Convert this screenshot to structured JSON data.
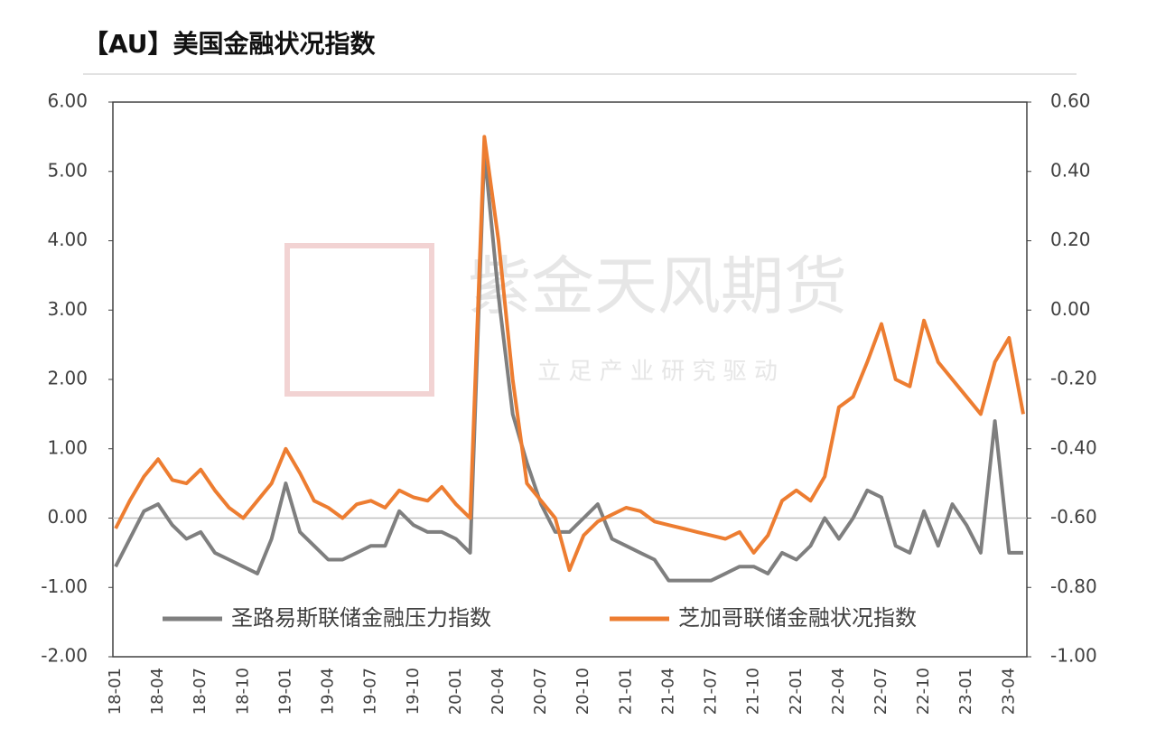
{
  "chart_data": {
    "type": "line",
    "title": "【AU】美国金融状况指数",
    "watermark": "紫金天风期货",
    "watermark_slogan": "立 足 产 业   研 究 驱 动",
    "categories": [
      "18-01",
      null,
      null,
      "18-04",
      null,
      null,
      "18-07",
      null,
      null,
      "18-10",
      null,
      null,
      "19-01",
      null,
      null,
      "19-04",
      null,
      null,
      "19-07",
      null,
      null,
      "19-10",
      null,
      null,
      "20-01",
      null,
      null,
      "20-04",
      null,
      null,
      "20-07",
      null,
      null,
      "20-10",
      null,
      null,
      "21-01",
      null,
      null,
      "21-04",
      null,
      null,
      "21-07",
      null,
      null,
      "21-10",
      null,
      null,
      "22-01",
      null,
      null,
      "22-04",
      null,
      null,
      "22-07",
      null,
      null,
      "22-10",
      null,
      null,
      "23-01",
      null,
      null,
      "23-04",
      null
    ],
    "series": [
      {
        "name": "圣路易斯联储金融压力指数",
        "color": "#7f7f7f",
        "axis": "y",
        "values": [
          -0.7,
          -0.3,
          0.1,
          0.2,
          -0.1,
          -0.3,
          -0.2,
          -0.5,
          -0.6,
          -0.7,
          -0.8,
          -0.3,
          0.5,
          -0.2,
          -0.4,
          -0.6,
          -0.6,
          -0.5,
          -0.4,
          -0.4,
          0.1,
          -0.1,
          -0.2,
          -0.2,
          -0.3,
          -0.5,
          5.3,
          3.2,
          1.5,
          0.8,
          0.2,
          -0.2,
          -0.2,
          0.0,
          0.2,
          -0.3,
          -0.4,
          -0.5,
          -0.6,
          -0.9,
          -0.9,
          -0.9,
          -0.9,
          -0.8,
          -0.7,
          -0.7,
          -0.8,
          -0.5,
          -0.6,
          -0.4,
          0.0,
          -0.3,
          0.0,
          0.4,
          0.3,
          -0.4,
          -0.5,
          0.1,
          -0.4,
          0.2,
          -0.1,
          -0.5,
          1.4,
          -0.5,
          -0.5
        ]
      },
      {
        "name": "芝加哥联储金融状况指数",
        "color": "#ed7d31",
        "axis": "y2",
        "values": [
          -0.63,
          -0.55,
          -0.48,
          -0.43,
          -0.49,
          -0.5,
          -0.46,
          -0.52,
          -0.57,
          -0.6,
          -0.55,
          -0.5,
          -0.4,
          -0.47,
          -0.55,
          -0.57,
          -0.6,
          -0.56,
          -0.55,
          -0.57,
          -0.52,
          -0.54,
          -0.55,
          -0.51,
          -0.56,
          -0.6,
          0.5,
          0.2,
          -0.2,
          -0.5,
          -0.55,
          -0.6,
          -0.75,
          -0.65,
          -0.61,
          -0.59,
          -0.57,
          -0.58,
          -0.61,
          -0.62,
          -0.63,
          -0.64,
          -0.65,
          -0.66,
          -0.64,
          -0.7,
          -0.65,
          -0.55,
          -0.52,
          -0.55,
          -0.48,
          -0.28,
          -0.25,
          -0.15,
          -0.04,
          -0.2,
          -0.22,
          -0.03,
          -0.15,
          -0.2,
          -0.25,
          -0.3,
          -0.15,
          -0.08,
          -0.3
        ]
      }
    ],
    "ylim": [
      -2,
      6
    ],
    "yticks": [
      {
        "value": -2,
        "label": "-2.00"
      },
      {
        "value": -1,
        "label": "-1.00"
      },
      {
        "value": 0,
        "label": "0.00"
      },
      {
        "value": 1,
        "label": "1.00"
      },
      {
        "value": 2,
        "label": "2.00"
      },
      {
        "value": 3,
        "label": "3.00"
      },
      {
        "value": 4,
        "label": "4.00"
      },
      {
        "value": 5,
        "label": "5.00"
      },
      {
        "value": 6,
        "label": "6.00"
      }
    ],
    "y2lim": [
      -1,
      0.6
    ],
    "y2ticks": [
      {
        "value": -1,
        "label": "-1.00"
      },
      {
        "value": -0.8,
        "label": "-0.80"
      },
      {
        "value": -0.6,
        "label": "-0.60"
      },
      {
        "value": -0.4,
        "label": "-0.40"
      },
      {
        "value": -0.2,
        "label": "-0.20"
      },
      {
        "value": 0,
        "label": "0.00"
      },
      {
        "value": 0.2,
        "label": "0.20"
      },
      {
        "value": 0.4,
        "label": "0.40"
      },
      {
        "value": 0.6,
        "label": "0.60"
      }
    ],
    "zero_line": true
  }
}
